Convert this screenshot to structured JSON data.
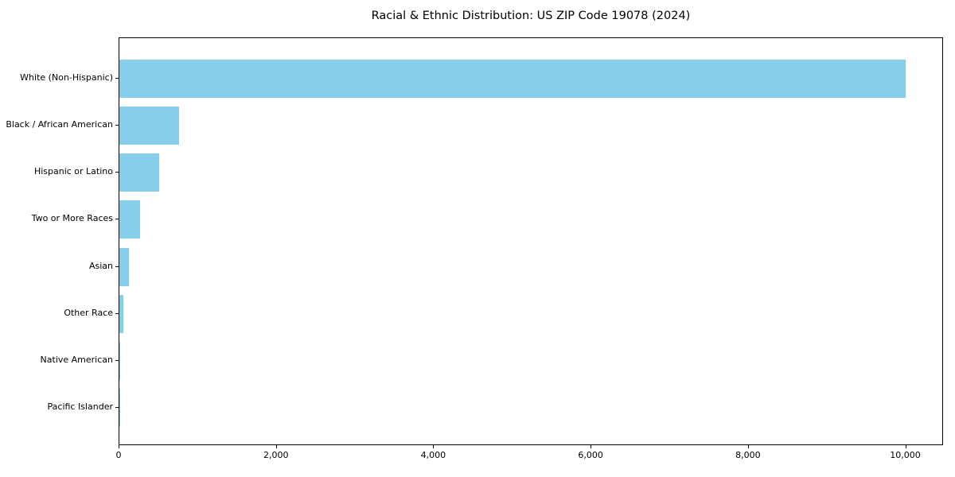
{
  "chart_data": {
    "type": "bar",
    "orientation": "horizontal",
    "title": "Racial & Ethnic Distribution: US ZIP Code 19078 (2024)",
    "categories": [
      "White (Non-Hispanic)",
      "Black / African American",
      "Hispanic or Latino",
      "Two or More Races",
      "Asian",
      "Other Race",
      "Native American",
      "Pacific Islander"
    ],
    "values": [
      9990,
      755,
      505,
      265,
      120,
      48,
      8,
      2
    ],
    "bar_color": "#87CEEB",
    "xlabel": "",
    "ylabel": "",
    "xlim": [
      0,
      10480
    ],
    "x_ticks": [
      0,
      2000,
      4000,
      6000,
      8000,
      10000
    ],
    "x_tick_labels": [
      "0",
      "2,000",
      "4,000",
      "6,000",
      "8,000",
      "10,000"
    ],
    "grid": false,
    "legend": false,
    "spine_color": "#000000",
    "text_color": "#000000",
    "background_color": "#ffffff"
  }
}
